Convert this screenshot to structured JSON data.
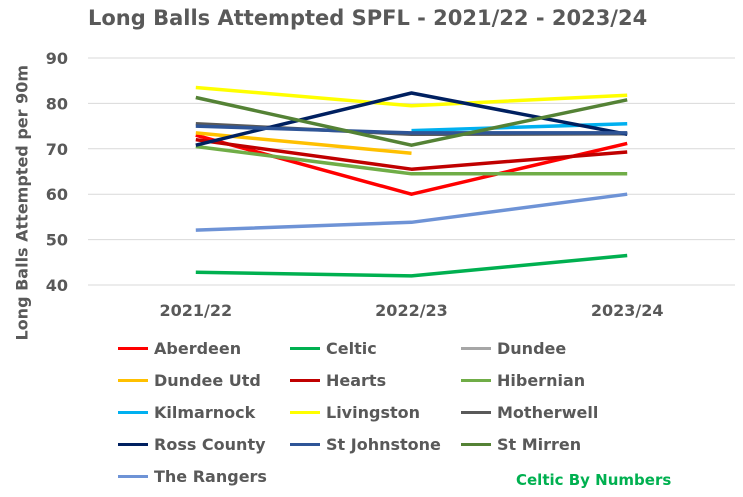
{
  "chart_data": {
    "type": "line",
    "title": "Long Balls Attempted SPFL - 2021/22 - 2023/24",
    "ylabel": "Long Balls Attempted per 90m",
    "xlabel": "",
    "categories": [
      "2021/22",
      "2022/23",
      "2023/24"
    ],
    "ylim": [
      40,
      90
    ],
    "yticks": [
      40,
      50,
      60,
      70,
      80,
      90
    ],
    "grid": true,
    "legend_position": "bottom",
    "series": [
      {
        "name": "Aberdeen",
        "color": "#ff0000",
        "values": [
          73.0,
          60.0,
          71.2
        ]
      },
      {
        "name": "Celtic",
        "color": "#00b050",
        "values": [
          42.8,
          42.0,
          46.5
        ]
      },
      {
        "name": "Dundee",
        "color": "#a6a6a6",
        "values": [
          null,
          73.5,
          73.5
        ]
      },
      {
        "name": "Dundee Utd",
        "color": "#ffc000",
        "values": [
          73.5,
          69.0,
          null
        ]
      },
      {
        "name": "Hearts",
        "color": "#c00000",
        "values": [
          72.0,
          65.5,
          69.3
        ]
      },
      {
        "name": "Hibernian",
        "color": "#70ad47",
        "values": [
          70.5,
          64.5,
          64.5
        ]
      },
      {
        "name": "Kilmarnock",
        "color": "#00b0f0",
        "values": [
          null,
          74.0,
          75.5
        ]
      },
      {
        "name": "Livingston",
        "color": "#ffff00",
        "values": [
          83.5,
          79.5,
          81.8
        ]
      },
      {
        "name": "Motherwell",
        "color": "#595959",
        "values": [
          75.5,
          73.2,
          73.3
        ]
      },
      {
        "name": "Ross County",
        "color": "#002060",
        "values": [
          70.8,
          82.3,
          73.2
        ]
      },
      {
        "name": "St Johnstone",
        "color": "#2f5597",
        "values": [
          75.0,
          73.5,
          73.5
        ]
      },
      {
        "name": "St Mirren",
        "color": "#548235",
        "values": [
          81.3,
          70.8,
          80.8
        ]
      },
      {
        "name": "The Rangers",
        "color": "#6e93d6",
        "values": [
          52.1,
          53.8,
          60.0
        ]
      }
    ]
  },
  "credit": "Celtic By Numbers"
}
